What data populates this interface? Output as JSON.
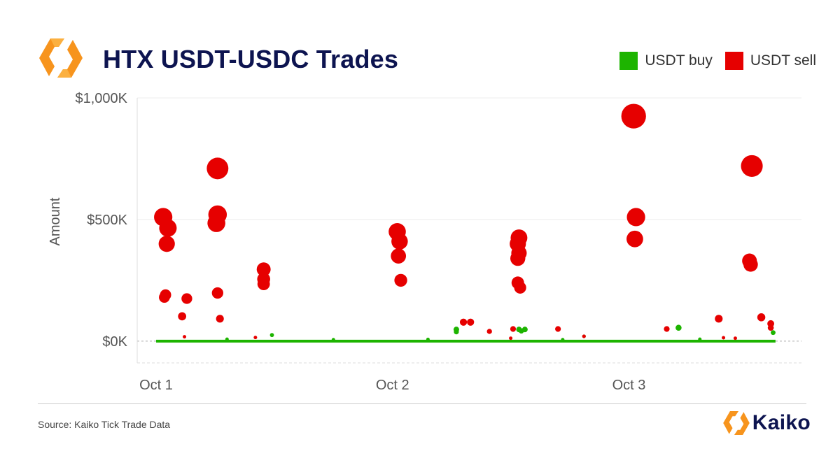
{
  "header": {
    "title": "HTX USDT-USDC Trades",
    "logo_icon": "kaiko-hexagon-logo-icon"
  },
  "legend": {
    "items": [
      {
        "label": "USDT buy",
        "color": "#1db400"
      },
      {
        "label": "USDT sell",
        "color": "#e60000"
      }
    ],
    "placement": "top-right"
  },
  "footer": {
    "source": "Source: Kaiko Tick Trade Data",
    "brand": "Kaiko"
  },
  "chart_data": {
    "type": "scatter",
    "title": "HTX USDT-USDC Trades",
    "xlabel": "",
    "ylabel": "Amount",
    "x_unit": "days since Oct 1",
    "xlim": [
      -0.08,
      2.73
    ],
    "ylim": [
      -55,
      1000
    ],
    "x_ticks": [
      {
        "value": 0,
        "label": "Oct 1"
      },
      {
        "value": 1,
        "label": "Oct 2"
      },
      {
        "value": 2,
        "label": "Oct 3"
      }
    ],
    "y_ticks": [
      {
        "value": 0,
        "label": "$0K"
      },
      {
        "value": 500,
        "label": "$500K"
      },
      {
        "value": 1000,
        "label": "$1,000K"
      }
    ],
    "y_unit": "$K",
    "grid": true,
    "series": [
      {
        "name": "USDT sell",
        "color": "#e60000",
        "points": [
          {
            "x": 0.03,
            "y": 510
          },
          {
            "x": 0.05,
            "y": 465
          },
          {
            "x": 0.045,
            "y": 400
          },
          {
            "x": 0.04,
            "y": 190
          },
          {
            "x": 0.035,
            "y": 180
          },
          {
            "x": 0.13,
            "y": 175
          },
          {
            "x": 0.11,
            "y": 102
          },
          {
            "x": 0.26,
            "y": 710
          },
          {
            "x": 0.26,
            "y": 520
          },
          {
            "x": 0.255,
            "y": 485
          },
          {
            "x": 0.26,
            "y": 198
          },
          {
            "x": 0.27,
            "y": 92
          },
          {
            "x": 0.455,
            "y": 295
          },
          {
            "x": 0.455,
            "y": 255
          },
          {
            "x": 0.455,
            "y": 235
          },
          {
            "x": 1.02,
            "y": 450
          },
          {
            "x": 1.03,
            "y": 410
          },
          {
            "x": 1.025,
            "y": 350
          },
          {
            "x": 1.035,
            "y": 250
          },
          {
            "x": 1.3,
            "y": 78
          },
          {
            "x": 1.33,
            "y": 78
          },
          {
            "x": 1.41,
            "y": 40
          },
          {
            "x": 1.51,
            "y": 50
          },
          {
            "x": 1.535,
            "y": 425
          },
          {
            "x": 1.53,
            "y": 400
          },
          {
            "x": 1.53,
            "y": 340
          },
          {
            "x": 1.535,
            "y": 362
          },
          {
            "x": 1.53,
            "y": 240
          },
          {
            "x": 1.54,
            "y": 220
          },
          {
            "x": 1.7,
            "y": 50
          },
          {
            "x": 2.02,
            "y": 925
          },
          {
            "x": 2.03,
            "y": 510
          },
          {
            "x": 2.025,
            "y": 420
          },
          {
            "x": 2.16,
            "y": 50
          },
          {
            "x": 2.38,
            "y": 92
          },
          {
            "x": 2.52,
            "y": 720
          },
          {
            "x": 2.51,
            "y": 330
          },
          {
            "x": 2.515,
            "y": 315
          },
          {
            "x": 2.56,
            "y": 98
          },
          {
            "x": 2.6,
            "y": 72
          },
          {
            "x": 2.6,
            "y": 55
          },
          {
            "x": 0.12,
            "y": 18
          },
          {
            "x": 0.42,
            "y": 15
          },
          {
            "x": 1.5,
            "y": 12
          },
          {
            "x": 2.4,
            "y": 14
          },
          {
            "x": 1.81,
            "y": 20
          },
          {
            "x": 2.45,
            "y": 12
          }
        ]
      },
      {
        "name": "USDT buy",
        "color": "#1db400",
        "points": [
          {
            "x": 0.49,
            "y": 25
          },
          {
            "x": 1.27,
            "y": 48
          },
          {
            "x": 1.27,
            "y": 38
          },
          {
            "x": 1.535,
            "y": 48
          },
          {
            "x": 1.56,
            "y": 48
          },
          {
            "x": 1.545,
            "y": 42
          },
          {
            "x": 1.81,
            "y": 20
          },
          {
            "x": 2.21,
            "y": 55
          },
          {
            "x": 2.61,
            "y": 35
          },
          {
            "x": 0.3,
            "y": 8
          },
          {
            "x": 0.75,
            "y": 6
          },
          {
            "x": 1.15,
            "y": 7
          },
          {
            "x": 1.72,
            "y": 6
          },
          {
            "x": 2.3,
            "y": 8
          }
        ]
      }
    ],
    "baseline": {
      "from": 0.0,
      "to": 2.62,
      "y": 0,
      "color": "#1db400"
    }
  }
}
